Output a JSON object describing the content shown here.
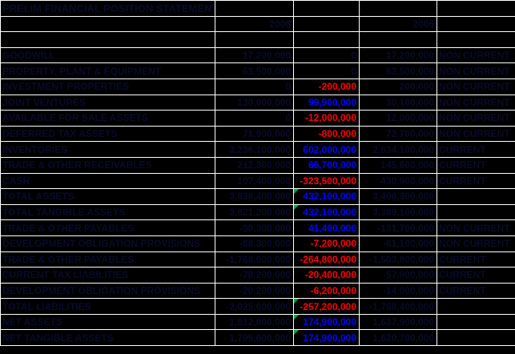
{
  "sheet": {
    "title": "PRELIM FINANCIAL POSITION STATEMENT",
    "year_left": "2006",
    "year_right": "2005"
  },
  "colors": {
    "background": "#000000",
    "gridline": "#ffffff",
    "dark_text": "#0a0a2a",
    "negative_change": "#ff0000",
    "positive_change": "#0000ff",
    "warning_indicator_green": "#00a33c"
  },
  "rows": [
    {
      "label": "GOODWILL",
      "v2006": "17,200,000",
      "change": "0",
      "v2005": "17,200,000",
      "cls": "NON CURRENT",
      "change_color": "dark",
      "flag": false
    },
    {
      "label": "PROPERTY, PLANT & EQUIPMENT",
      "v2006": "63,500,000",
      "change": "0",
      "v2005": "63,500,000",
      "cls": "NON CURRENT",
      "change_color": "dark",
      "flag": false
    },
    {
      "label": "INVESTMENT PROPERTIES",
      "v2006": "0",
      "change": "-200,000",
      "v2005": "200,000",
      "cls": "NON CURRENT",
      "change_color": "red",
      "flag": false
    },
    {
      "label": "JOINT VENTURES",
      "v2006": "130,000,000",
      "change": "99,900,000",
      "v2005": "30,100,000",
      "cls": "NON CURRENT",
      "change_color": "blue",
      "flag": false
    },
    {
      "label": "AVAILABLE FOR SALE ASSETS",
      "v2006": "0",
      "change": "-12,000,000",
      "v2005": "12,000,000",
      "cls": "NON CURRENT",
      "change_color": "red",
      "flag": false
    },
    {
      "label": "DEFERRED TAX ASSETS",
      "v2006": "71,900,000",
      "change": "-800,000",
      "v2005": "72,700,000",
      "cls": "NON CURRENT",
      "change_color": "red",
      "flag": false
    },
    {
      "label": "INVENTORIES",
      "v2006": "3,236,100,000",
      "change": "602,000,000",
      "v2005": "2,634,100,000",
      "cls": "CURRENT",
      "change_color": "blue",
      "flag": false
    },
    {
      "label": "TRADE & OTHER RECEIVABLES",
      "v2006": "212,300,000",
      "change": "66,700,000",
      "v2005": "145,600,000",
      "cls": "CURRENT",
      "change_color": "blue",
      "flag": false
    },
    {
      "label": "CASH",
      "v2006": "107,400,000",
      "change": "-323,500,000",
      "v2005": "430,900,000",
      "cls": "CURRENT",
      "change_color": "red",
      "flag": false
    },
    {
      "label": "TOTAL ASSETS",
      "v2006": "3,838,400,000",
      "change": "432,100,000",
      "v2005": "3,406,300,000",
      "cls": "",
      "change_color": "blue",
      "flag": true
    },
    {
      "label": "TOTAL TANGIBLE ASSETS",
      "v2006": "3,821,200,000",
      "change": "432,100,000",
      "v2005": "3,389,100,000",
      "cls": "",
      "change_color": "blue",
      "flag": true
    },
    {
      "label": "TRADE & OTHER PAYABLES",
      "v2006": "-90,300,000",
      "change": "41,400,000",
      "v2005": "-131,700,000",
      "cls": "NON CURRENT",
      "change_color": "blue",
      "flag": false
    },
    {
      "label": "DEVELOPMENT OBLIGATION PROVISIONS",
      "v2006": "-68,300,000",
      "change": "-7,200,000",
      "v2005": "-61,100,000",
      "cls": "NON CURRENT",
      "change_color": "red",
      "flag": false
    },
    {
      "label": "TRADE & OTHER PAYABLES",
      "v2006": "-1,768,600,000",
      "change": "-264,800,000",
      "v2005": "-1,503,800,000",
      "cls": "CURRENT",
      "change_color": "red",
      "flag": false
    },
    {
      "label": "CURRENT TAX LIABILITIES",
      "v2006": "-78,200,000",
      "change": "-20,400,000",
      "v2005": "-57,800,000",
      "cls": "CURRENT",
      "change_color": "red",
      "flag": false
    },
    {
      "label": "DEVELOPMENT OBLIGATION PROVISIONS",
      "v2006": "-20,200,000",
      "change": "-6,200,000",
      "v2005": "-14,000,000",
      "cls": "CURRENT",
      "change_color": "red",
      "flag": false
    },
    {
      "label": "TOTAL LIABILITIES",
      "v2006": "-2,025,600,000",
      "change": "-257,200,000",
      "v2005": "-1,768,400,000",
      "cls": "",
      "change_color": "red",
      "flag": true
    },
    {
      "label": "NET ASSETS",
      "v2006": "1,812,800,000",
      "change": "174,900,000",
      "v2005": "1,637,900,000",
      "cls": "",
      "change_color": "blue",
      "flag": true
    },
    {
      "label": "NET TANGIBLE ASSETS",
      "v2006": "1,795,600,000",
      "change": "174,900,000",
      "v2005": "1,620,700,000",
      "cls": "",
      "change_color": "blue",
      "flag": true
    }
  ]
}
